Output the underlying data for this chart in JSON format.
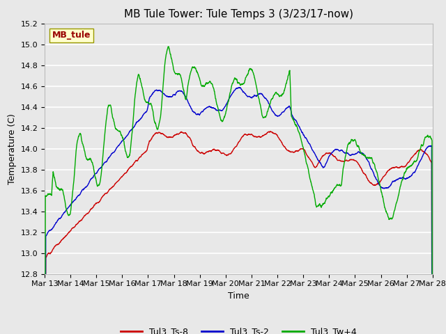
{
  "title": "MB Tule Tower: Tule Temps 3 (3/23/17-now)",
  "xlabel": "Time",
  "ylabel": "Temperature (C)",
  "ylim": [
    12.8,
    15.2
  ],
  "xlim": [
    0,
    15
  ],
  "xtick_labels": [
    "Mar 13",
    "Mar 14",
    "Mar 15",
    "Mar 16",
    "Mar 17",
    "Mar 18",
    "Mar 19",
    "Mar 20",
    "Mar 21",
    "Mar 22",
    "Mar 23",
    "Mar 24",
    "Mar 25",
    "Mar 26",
    "Mar 27",
    "Mar 28"
  ],
  "legend_labels": [
    "Tul3_Ts-8",
    "Tul3_Ts-2",
    "Tul3_Tw+4"
  ],
  "legend_colors": [
    "#cc0000",
    "#0000cc",
    "#00aa00"
  ],
  "line_width": 1.0,
  "fig_bg_color": "#e8e8e8",
  "plot_bg_color": "#e8e8e8",
  "grid_color": "#ffffff",
  "station_label": "MB_tule",
  "station_label_color": "#990000",
  "station_box_facecolor": "#ffffcc",
  "station_box_edgecolor": "#999900",
  "title_fontsize": 11,
  "axis_label_fontsize": 9,
  "tick_fontsize": 8,
  "legend_fontsize": 9
}
